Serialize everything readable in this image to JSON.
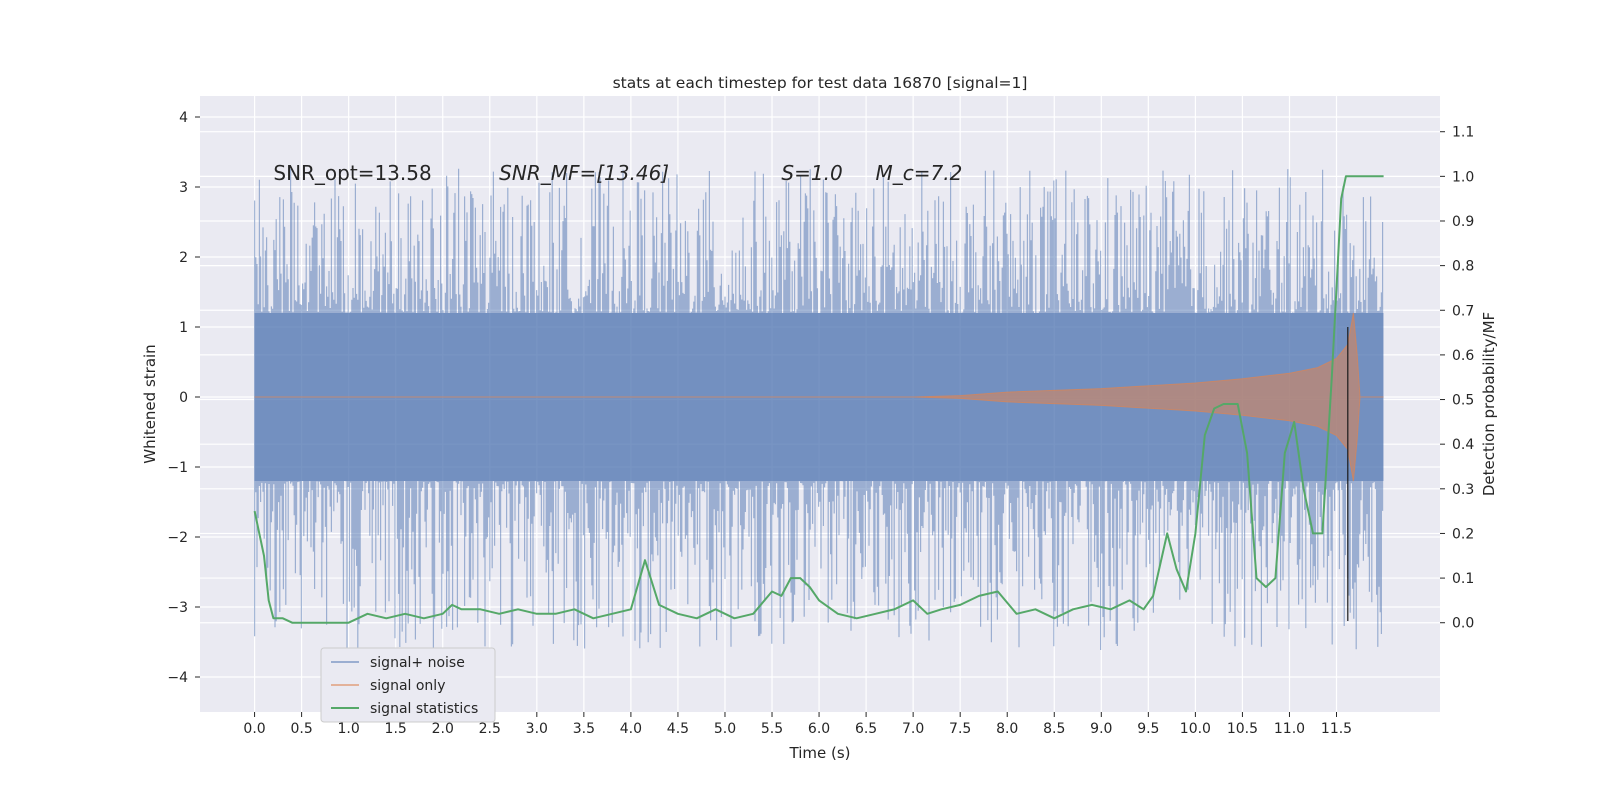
{
  "chart_data": {
    "type": "line",
    "title": "stats at each timestep for test data 16870 [signal=1]",
    "xlabel": "Time (s)",
    "ylabel": "Whitened strain",
    "y2label": "Detection probability/MF",
    "xlim": [
      -0.58,
      12.6
    ],
    "ylim": [
      -4.5,
      4.3
    ],
    "y2lim": [
      -0.2,
      1.18
    ],
    "x_ticks": [
      "0.0",
      "0.5",
      "1.0",
      "1.5",
      "2.0",
      "2.5",
      "3.0",
      "3.5",
      "4.0",
      "4.5",
      "5.0",
      "5.5",
      "6.0",
      "6.5",
      "7.0",
      "7.5",
      "8.0",
      "8.5",
      "9.0",
      "9.5",
      "10.0",
      "10.5",
      "11.0",
      "11.5"
    ],
    "y_ticks": [
      "4",
      "3",
      "2",
      "1",
      "0",
      "−1",
      "−2",
      "−3",
      "−4"
    ],
    "y2_ticks": [
      "1.1",
      "1.0",
      "0.9",
      "0.8",
      "0.7",
      "0.6",
      "0.5",
      "0.4",
      "0.3",
      "0.2",
      "0.1",
      "0.0"
    ],
    "grid": true,
    "legend_position": "lower-left",
    "annotations": [
      {
        "text": "SNR_opt=13.58",
        "x": 0.2,
        "y": 3.1,
        "italic": false
      },
      {
        "text": "SNR_MF=[13.46]",
        "x": 2.6,
        "y": 3.1,
        "italic": true
      },
      {
        "text": "S=1.0",
        "x": 5.6,
        "y": 3.1,
        "italic": true
      },
      {
        "text": "M_c=7.2",
        "x": 6.6,
        "y": 3.1,
        "italic": true
      }
    ],
    "series": [
      {
        "name": "signal+ noise",
        "color": "#4c72b0",
        "alpha": 0.5,
        "x_range": [
          0.0,
          12.0
        ],
        "band_core": [
          -1.2,
          1.2
        ],
        "band_spikes": [
          -3.3,
          3.0
        ]
      },
      {
        "name": "signal only",
        "color": "#dd8452",
        "alpha": 0.55,
        "envelope_x": [
          0.0,
          7.0,
          7.5,
          8.0,
          9.0,
          10.0,
          10.5,
          11.0,
          11.3,
          11.5,
          11.62,
          11.68,
          11.72,
          11.75,
          12.0
        ],
        "envelope_y": [
          0.0,
          0.0,
          0.02,
          0.07,
          0.12,
          0.2,
          0.26,
          0.34,
          0.42,
          0.55,
          0.75,
          1.2,
          0.6,
          0.0,
          0.0
        ]
      },
      {
        "name": "signal statistics",
        "color": "#55a868",
        "x": [
          0.0,
          0.1,
          0.15,
          0.2,
          0.3,
          0.4,
          0.5,
          0.6,
          0.8,
          1.0,
          1.2,
          1.4,
          1.6,
          1.8,
          2.0,
          2.1,
          2.2,
          2.4,
          2.6,
          2.8,
          3.0,
          3.2,
          3.4,
          3.6,
          3.8,
          4.0,
          4.15,
          4.3,
          4.5,
          4.7,
          4.9,
          5.1,
          5.3,
          5.5,
          5.6,
          5.7,
          5.8,
          5.9,
          6.0,
          6.2,
          6.4,
          6.6,
          6.8,
          7.0,
          7.15,
          7.3,
          7.5,
          7.7,
          7.9,
          8.1,
          8.3,
          8.5,
          8.7,
          8.9,
          9.1,
          9.3,
          9.45,
          9.55,
          9.7,
          9.8,
          9.9,
          10.0,
          10.1,
          10.2,
          10.3,
          10.35,
          10.45,
          10.55,
          10.65,
          10.75,
          10.85,
          10.95,
          11.05,
          11.15,
          11.25,
          11.35,
          11.45,
          11.55,
          11.6,
          11.65,
          11.7,
          11.8,
          11.9,
          12.0
        ],
        "y": [
          0.25,
          0.15,
          0.05,
          0.01,
          0.01,
          0.0,
          0.0,
          0.0,
          0.0,
          0.0,
          0.02,
          0.01,
          0.02,
          0.01,
          0.02,
          0.04,
          0.03,
          0.03,
          0.02,
          0.03,
          0.02,
          0.02,
          0.03,
          0.01,
          0.02,
          0.03,
          0.14,
          0.04,
          0.02,
          0.01,
          0.03,
          0.01,
          0.02,
          0.07,
          0.06,
          0.1,
          0.1,
          0.08,
          0.05,
          0.02,
          0.01,
          0.02,
          0.03,
          0.05,
          0.02,
          0.03,
          0.04,
          0.06,
          0.07,
          0.02,
          0.03,
          0.01,
          0.03,
          0.04,
          0.03,
          0.05,
          0.03,
          0.06,
          0.2,
          0.12,
          0.07,
          0.2,
          0.42,
          0.48,
          0.49,
          0.49,
          0.49,
          0.38,
          0.1,
          0.08,
          0.1,
          0.38,
          0.45,
          0.3,
          0.2,
          0.2,
          0.55,
          0.95,
          1.0,
          1.0,
          1.0,
          1.0,
          1.0,
          1.0
        ]
      }
    ]
  }
}
